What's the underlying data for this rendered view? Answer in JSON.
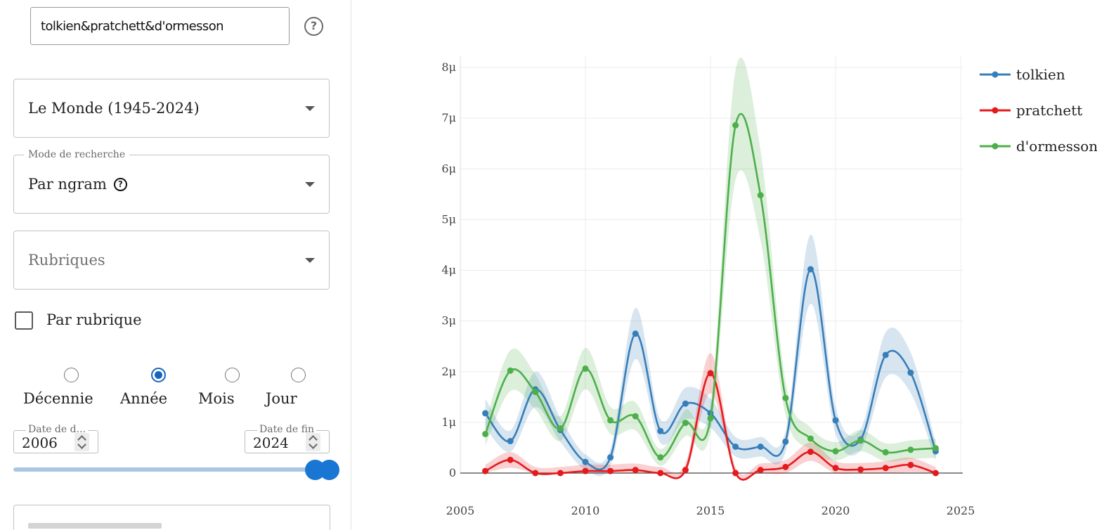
{
  "search": {
    "query": "tolkien&pratchett&d'ormesson",
    "help_icon": "?"
  },
  "corpus": {
    "value": "Le Monde (1945-2024)"
  },
  "mode": {
    "legend": "Mode de recherche",
    "value": "Par ngram",
    "help_icon": "?"
  },
  "rubriques": {
    "placeholder": "Rubriques"
  },
  "par_rubrique": {
    "label": "Par rubrique",
    "checked": false
  },
  "resolution": {
    "options": [
      {
        "label": "Décennie",
        "selected": false
      },
      {
        "label": "Année",
        "selected": true
      },
      {
        "label": "Mois",
        "selected": false
      },
      {
        "label": "Jour",
        "selected": false
      }
    ]
  },
  "dates": {
    "start_label": "Date de d...",
    "start_value": "2006",
    "end_label": "Date de fin",
    "end_value": "2024"
  },
  "colors": {
    "tolkien": "#377eb8",
    "pratchett": "#e41a1c",
    "dormesson": "#4daf4a",
    "accent": "#1976d2"
  },
  "chart_data": {
    "type": "line",
    "xlabel": "",
    "ylabel": "",
    "xlim": [
      2005,
      2025
    ],
    "ylim": [
      0,
      8
    ],
    "x_ticks": [
      "2005",
      "2010",
      "2015",
      "2020",
      "2025"
    ],
    "y_ticks": [
      "0",
      "1μ",
      "2μ",
      "3μ",
      "4μ",
      "5μ",
      "6μ",
      "7μ",
      "8μ"
    ],
    "legend_position": "top-right",
    "grid": true,
    "x": [
      2006,
      2007,
      2008,
      2009,
      2010,
      2011,
      2012,
      2013,
      2014,
      2015,
      2016,
      2017,
      2018,
      2019,
      2020,
      2021,
      2022,
      2023,
      2024
    ],
    "series": [
      {
        "name": "tolkien",
        "color": "#377eb8",
        "values": [
          1.18,
          0.63,
          1.65,
          0.85,
          0.22,
          0.31,
          2.75,
          0.83,
          1.37,
          1.18,
          0.52,
          0.52,
          0.62,
          4.02,
          1.04,
          0.66,
          2.33,
          1.98,
          0.43
        ]
      },
      {
        "name": "pratchett",
        "color": "#e41a1c",
        "values": [
          0.04,
          0.26,
          0.0,
          0.0,
          0.04,
          0.04,
          0.06,
          0.0,
          0.06,
          1.97,
          0.0,
          0.06,
          0.12,
          0.42,
          0.1,
          0.07,
          0.1,
          0.16,
          0.0
        ]
      },
      {
        "name": "d'ormesson",
        "color": "#4daf4a",
        "values": [
          0.77,
          2.02,
          1.6,
          0.88,
          2.06,
          1.04,
          1.12,
          0.31,
          0.99,
          1.08,
          6.86,
          5.48,
          1.48,
          0.68,
          0.43,
          0.64,
          0.41,
          0.46,
          0.49
        ]
      }
    ]
  }
}
